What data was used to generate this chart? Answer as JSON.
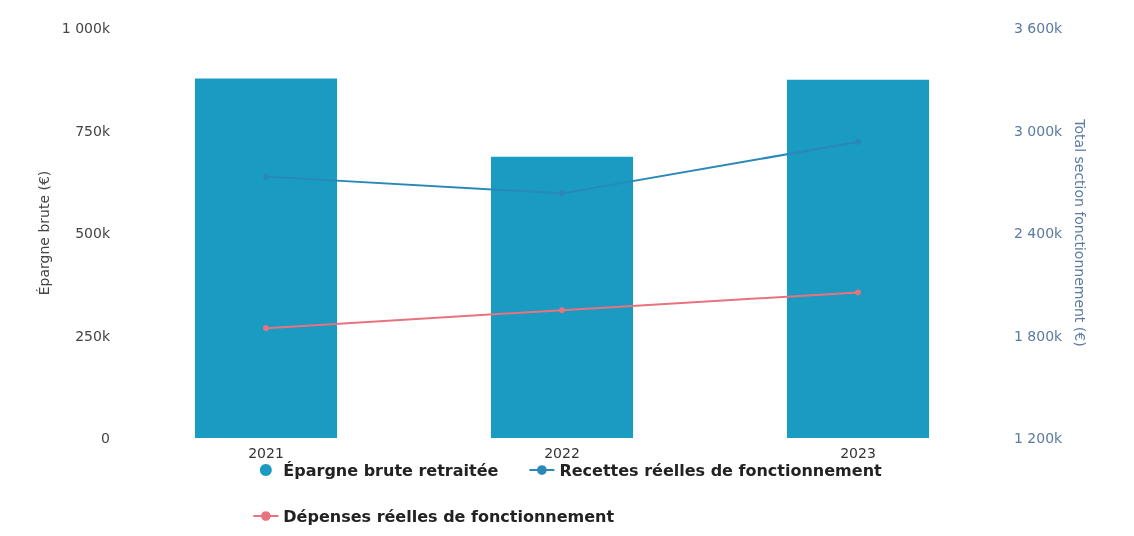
{
  "chart_data": {
    "type": "bar",
    "categories": [
      "2021",
      "2022",
      "2023"
    ],
    "ylabel": "Épargne brute (€)",
    "y2label": "Total section fonctionnement (€)",
    "ylim": [
      0,
      1000000
    ],
    "yticks": [
      0,
      {
        "value": 250000,
        "label": "250k"
      },
      {
        "value": 500000,
        "label": "500k"
      },
      {
        "value": 750000,
        "label": "750k"
      },
      {
        "value": 1000000,
        "label": "1 000k"
      }
    ],
    "y2lim": [
      1200000,
      3600000
    ],
    "y2ticks": [
      {
        "value": 1200000,
        "label": "1 200k"
      },
      {
        "value": 1800000,
        "label": "1 800k"
      },
      {
        "value": 2400000,
        "label": "2 400k"
      },
      {
        "value": 3000000,
        "label": "3 000k"
      },
      {
        "value": 3600000,
        "label": "3 600k"
      }
    ],
    "series": [
      {
        "name": "Épargne brute retraitée",
        "color": "#1a9bc2",
        "values": [
          877000,
          686000,
          874000
        ]
      },
      {
        "name": "Recettes réelles de fonctionnement",
        "type": "line",
        "axis": "y2",
        "color": "#2a88b8",
        "values": [
          2730000,
          2632000,
          2933000
        ]
      },
      {
        "name": "Dépenses réelles de fonctionnement",
        "type": "line",
        "axis": "y2",
        "color": "#e8737f",
        "values": [
          1843000,
          1948000,
          2052000
        ]
      }
    ],
    "grid": false,
    "legend": "bottom",
    "marker": "circle",
    "line_style": "solid"
  }
}
